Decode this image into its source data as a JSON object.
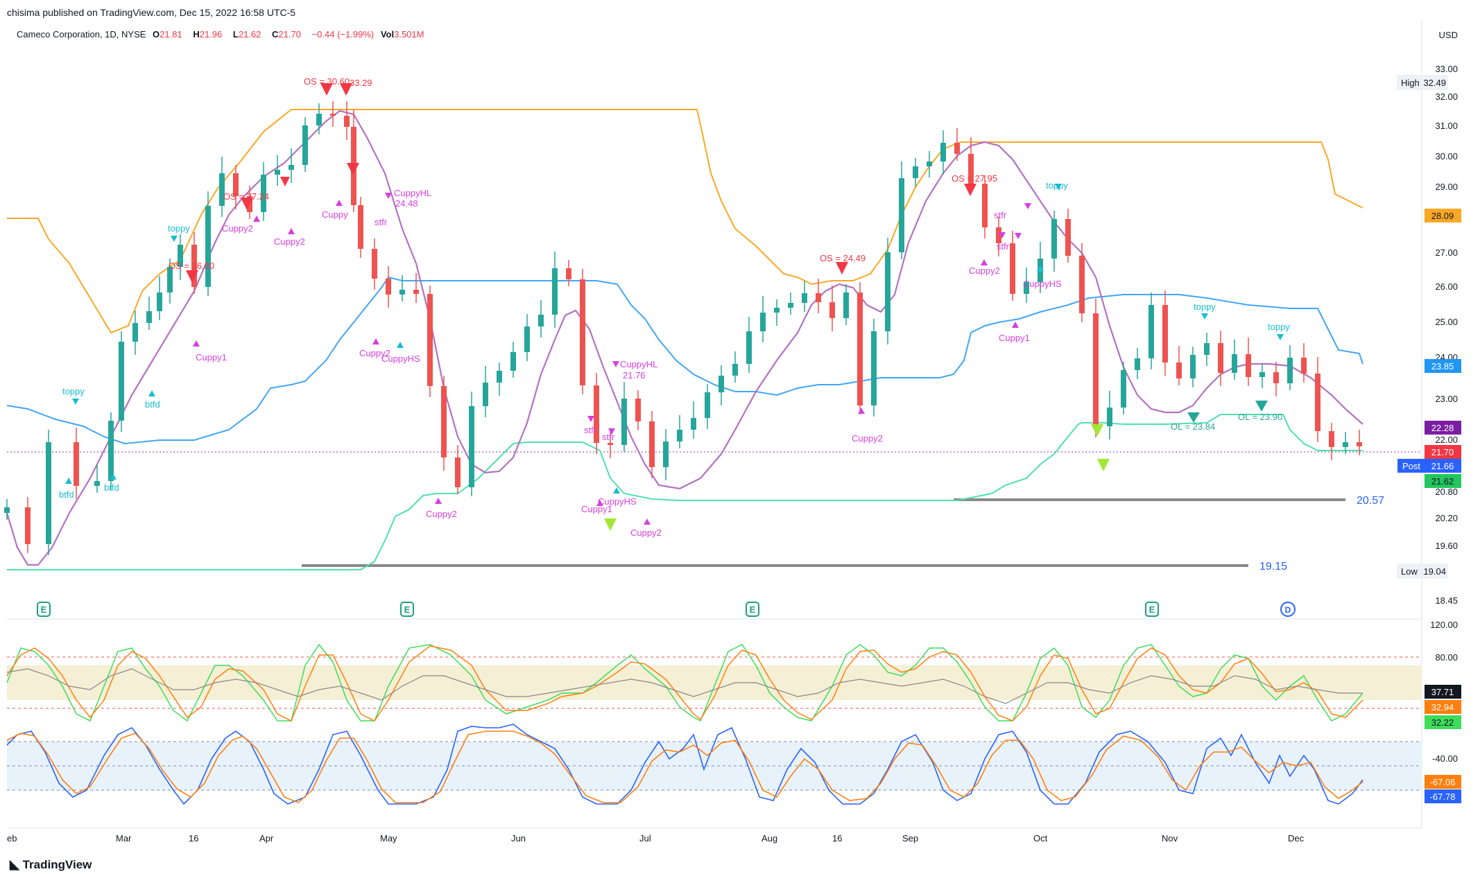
{
  "publisher": "chisima published on TradingView.com, Dec 15, 2022 16:58 UTC-5",
  "header": {
    "symbol": "Cameco Corporation, 1D, NYSE",
    "o_label": "O",
    "o_val": "21.81",
    "h_label": "H",
    "h_val": "21.96",
    "l_label": "L",
    "l_val": "21.62",
    "c_label": "C",
    "c_val": "21.70",
    "change": "−0.44 (−1.99%)",
    "vol_label": "Vol",
    "vol_val": "3.501M"
  },
  "currency": "USD",
  "price_axis": [
    "33.00",
    "32.00",
    "31.00",
    "30.00",
    "29.00",
    "27.00",
    "26.00",
    "25.00",
    "24.00",
    "23.00",
    "22.00",
    "20.80",
    "20.20",
    "19.60",
    "18.45"
  ],
  "osc1_axis": [
    "120.00",
    "80.00"
  ],
  "osc2_axis": [
    "-40.00"
  ],
  "badges": {
    "high_label": "High",
    "high_val": "32.49",
    "low_label": "Low",
    "low_val": "19.04",
    "orange": "28.09",
    "blue": "23.85",
    "purple": "22.28",
    "red": "21.70",
    "post_label": "Post",
    "post_val": "21.66",
    "green": "21.62",
    "osc1_a": "37.71",
    "osc1_b": "32.94",
    "osc1_c": "32.22",
    "osc2_a": "-67.06",
    "osc2_b": "-67.78"
  },
  "levels": {
    "l2057": "20.57",
    "l1915": "19.15"
  },
  "time_axis": [
    "eb",
    "Mar",
    "16",
    "Apr",
    "May",
    "Jun",
    "Jul",
    "Aug",
    "16",
    "Sep",
    "Oct",
    "Nov",
    "Dec"
  ],
  "annotations": {
    "os3060": "OS = 30.60",
    "v3329": "33.29",
    "os2724": "OS = 27.24",
    "os2680": "OS = 26.80",
    "cuppy1": "Cuppy1",
    "cuppy2": "Cuppy2",
    "cuppy": "Cuppy",
    "toppy": "toppy",
    "btfd": "btfd",
    "stfr": "stfr",
    "cuppyhl1": "CuppyHL",
    "v2448": "24.48",
    "cuppyhl2": "CuppyHL",
    "v2176": "21.76",
    "cuppyhs": "CuppyHS",
    "os2449": "OS = 24.49",
    "os2795": "OS = 27.95",
    "ol2384": "OL = 23.84",
    "ol2390": "OL = 23.90"
  },
  "footer_brand": "TradingView",
  "colors": {
    "up": "#26a69a",
    "down": "#ef5350",
    "orange": "#f9a825",
    "blue": "#42a5f5",
    "teal": "#4ee0b0",
    "purple": "#b371c3",
    "magenta": "#d63fe0",
    "cyan": "#17becf"
  }
}
